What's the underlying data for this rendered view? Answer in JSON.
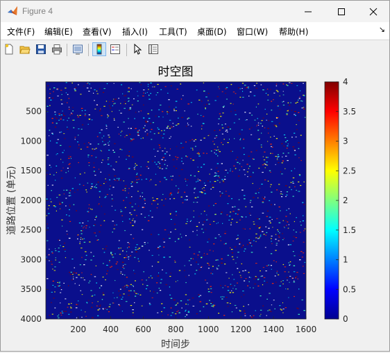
{
  "window": {
    "title": "Figure 4"
  },
  "menu": [
    {
      "label": "文件(F)"
    },
    {
      "label": "编辑(E)"
    },
    {
      "label": "查看(V)"
    },
    {
      "label": "插入(I)"
    },
    {
      "label": "工具(T)"
    },
    {
      "label": "桌面(D)"
    },
    {
      "label": "窗口(W)"
    },
    {
      "label": "帮助(H)"
    }
  ],
  "menu_overflow": "↘",
  "toolbar": {
    "icons": [
      "new-figure-icon",
      "open-file-icon",
      "save-icon",
      "print-icon",
      "print-preview-icon",
      "colorbar-icon",
      "legend-icon",
      "pointer-icon",
      "property-inspector-icon"
    ]
  },
  "chart_data": {
    "type": "heatmap",
    "title": "时空图",
    "xlabel": "时间步",
    "ylabel": "道路位置 (单元)",
    "xlim": [
      1,
      1600
    ],
    "ylim": [
      1,
      4000
    ],
    "y_reversed": true,
    "xticks": [
      200,
      400,
      600,
      800,
      1000,
      1200,
      1400,
      1600
    ],
    "yticks": [
      500,
      1000,
      1500,
      2000,
      2500,
      3000,
      3500,
      4000
    ],
    "colormap": "jet",
    "clim": [
      0,
      4
    ],
    "colorbar_ticks": [
      0,
      0.5,
      1,
      1.5,
      2,
      2.5,
      3,
      3.5,
      4
    ],
    "background_value": 0,
    "colors": {
      "background": "#0a0f8c",
      "dense_speckle": [
        "#ffffff",
        "#ffff00",
        "#ff2a00",
        "#8b0000",
        "#40ffc0",
        "#00e5ff"
      ]
    }
  }
}
